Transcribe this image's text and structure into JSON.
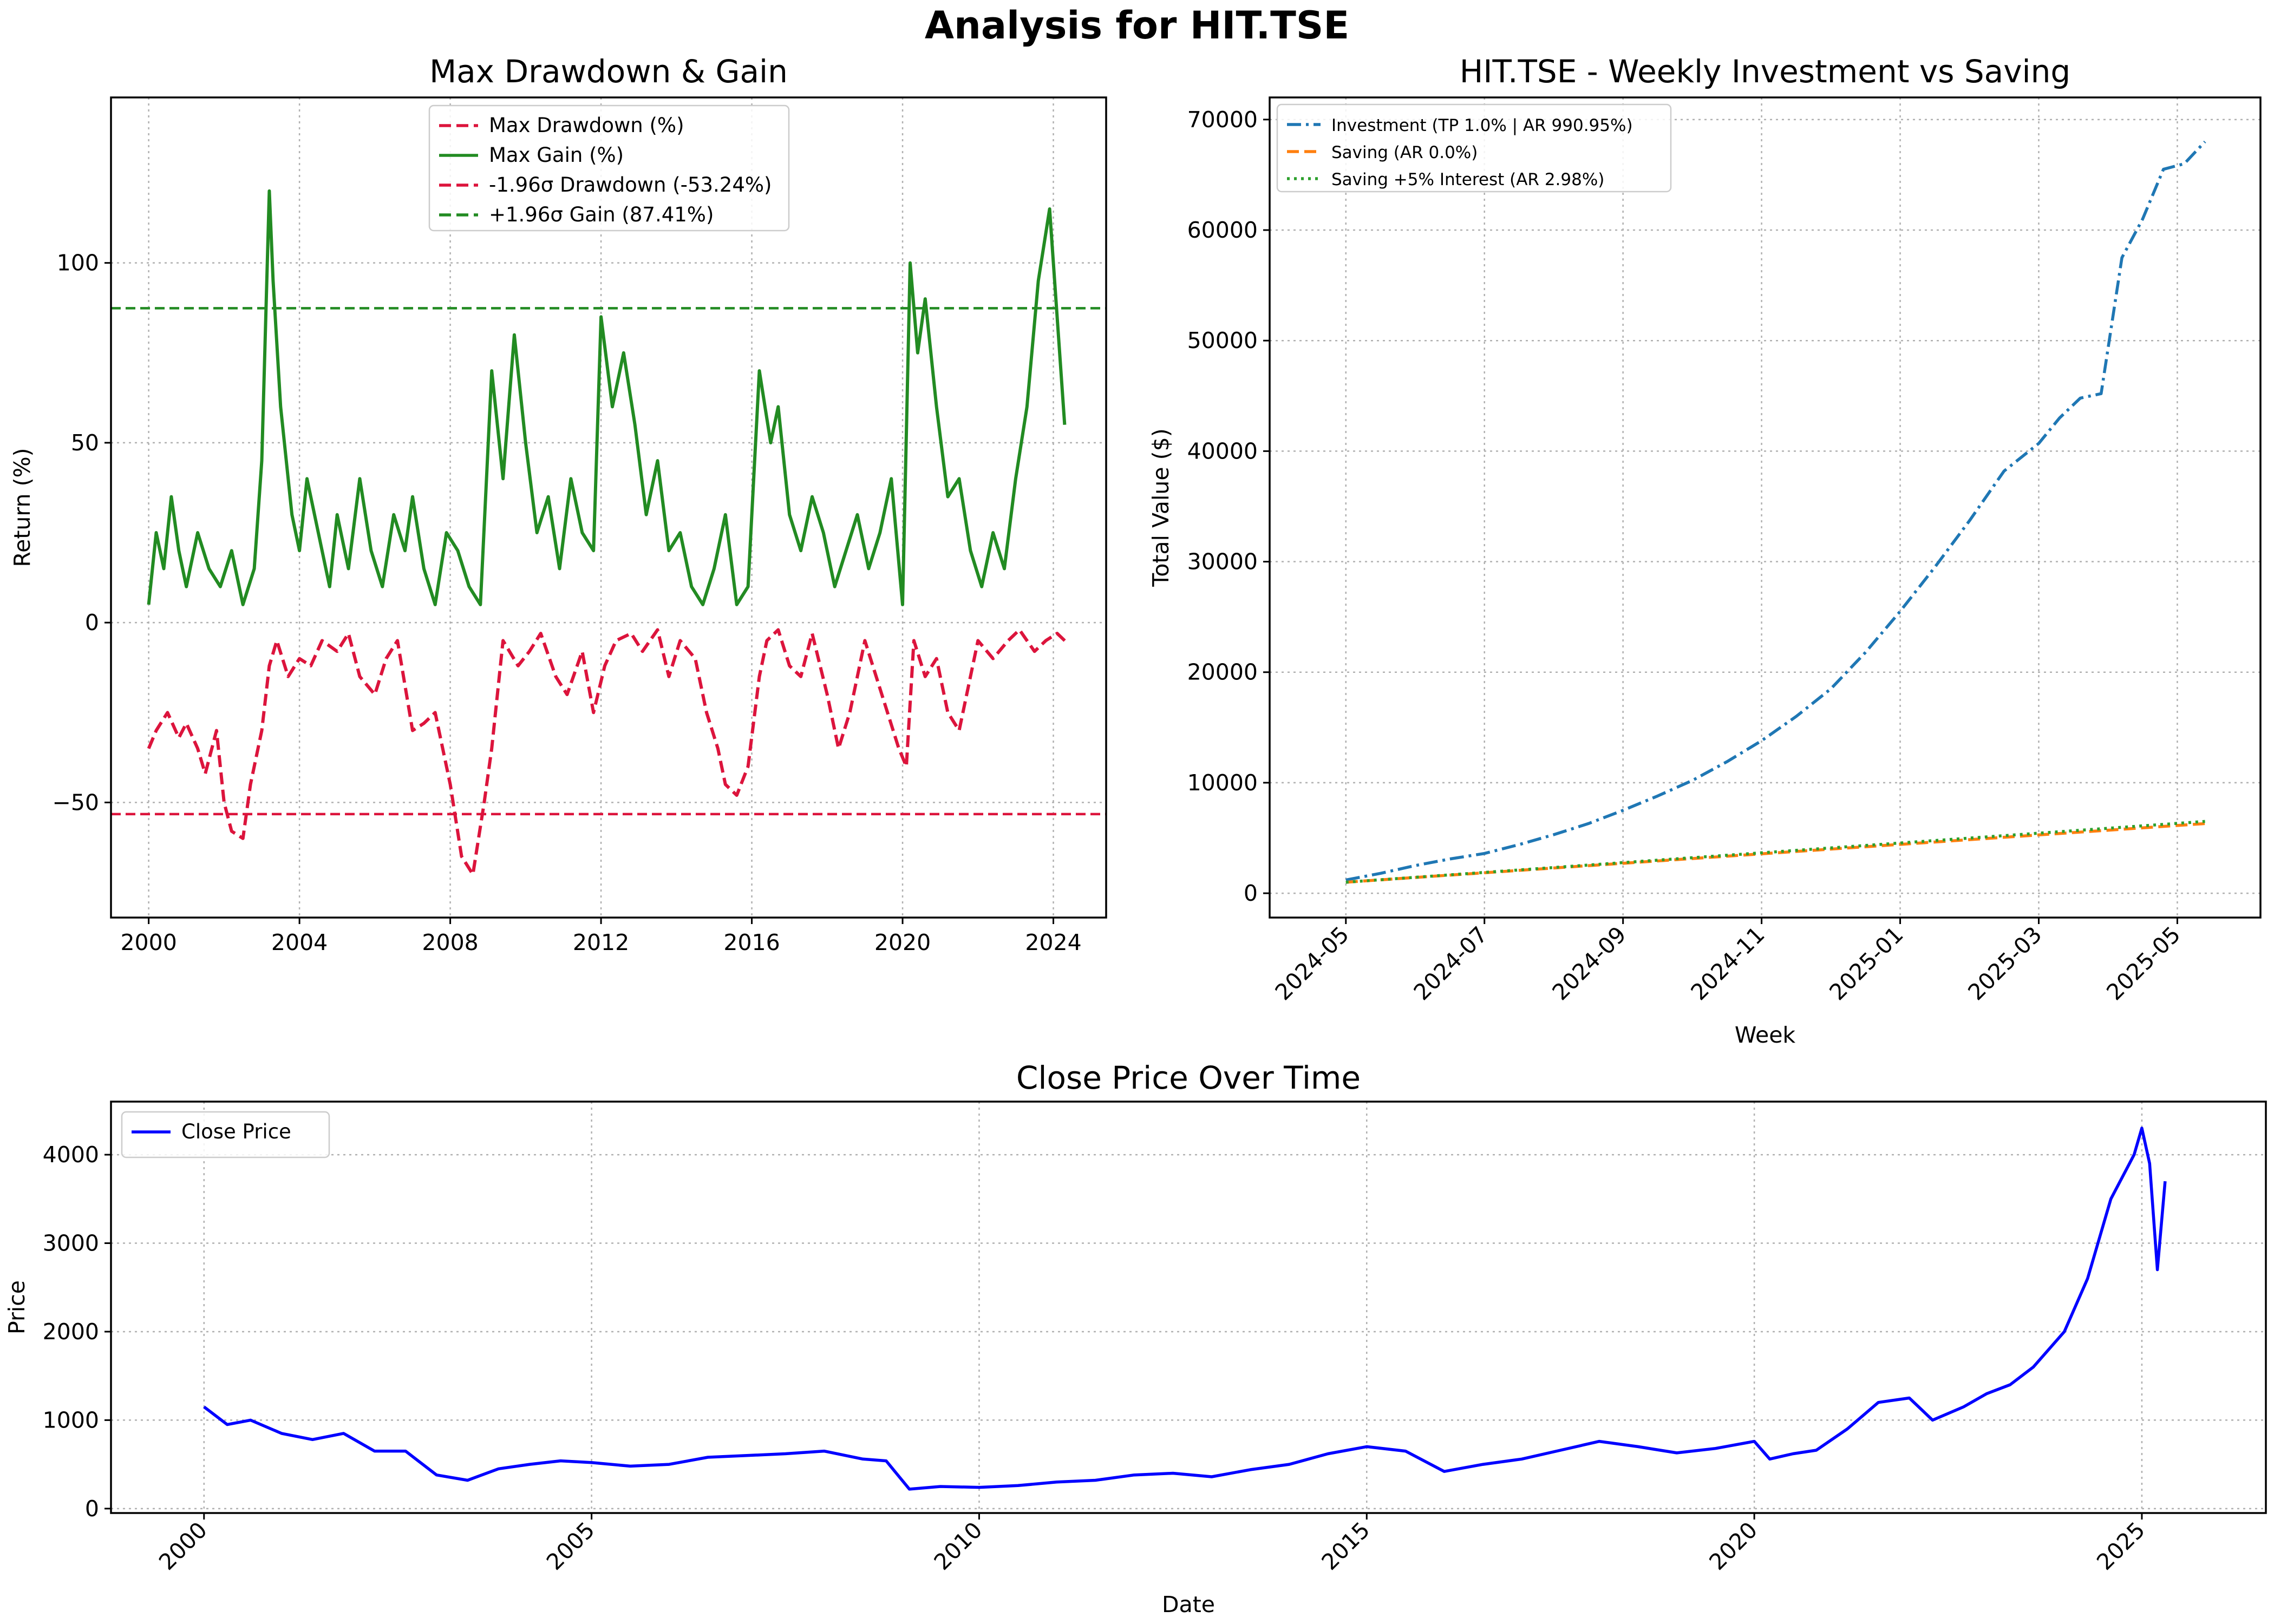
{
  "figure": {
    "title": "Analysis for HIT.TSE"
  },
  "chart_data": [
    {
      "id": "drawdown",
      "type": "line",
      "title": "Max Drawdown & Gain",
      "xlabel": "",
      "ylabel": "Return (%)",
      "xlim": [
        1999.0,
        2025.4
      ],
      "ylim": [
        -82,
        146
      ],
      "xticks": [
        2000,
        2004,
        2008,
        2012,
        2016,
        2020,
        2024
      ],
      "xtick_labels": [
        "2000",
        "2004",
        "2008",
        "2012",
        "2016",
        "2020",
        "2024"
      ],
      "yticks": [
        -50,
        0,
        50,
        100
      ],
      "ytick_labels": [
        "−50",
        "0",
        "50",
        "100"
      ],
      "grid": true,
      "legend_position": "upper center",
      "series": [
        {
          "name": "Max Drawdown (%)",
          "color": "#dc143c",
          "style": "dashed",
          "x": [
            2000.0,
            2000.2,
            2000.5,
            2000.8,
            2001.0,
            2001.3,
            2001.5,
            2001.8,
            2002.0,
            2002.2,
            2002.5,
            2002.7,
            2003.0,
            2003.2,
            2003.4,
            2003.7,
            2004.0,
            2004.3,
            2004.6,
            2005.0,
            2005.3,
            2005.6,
            2006.0,
            2006.3,
            2006.6,
            2007.0,
            2007.3,
            2007.6,
            2008.0,
            2008.3,
            2008.6,
            2008.9,
            2009.1,
            2009.4,
            2009.8,
            2010.1,
            2010.4,
            2010.8,
            2011.1,
            2011.5,
            2011.8,
            2012.1,
            2012.4,
            2012.8,
            2013.1,
            2013.5,
            2013.8,
            2014.1,
            2014.5,
            2014.8,
            2015.1,
            2015.3,
            2015.6,
            2015.9,
            2016.2,
            2016.4,
            2016.7,
            2017.0,
            2017.3,
            2017.6,
            2018.0,
            2018.3,
            2018.6,
            2019.0,
            2019.3,
            2019.6,
            2019.9,
            2020.1,
            2020.3,
            2020.6,
            2020.9,
            2021.2,
            2021.5,
            2021.8,
            2022.0,
            2022.4,
            2022.8,
            2023.1,
            2023.5,
            2023.8,
            2024.1,
            2024.4
          ],
          "y": [
            -35,
            -30,
            -25,
            -32,
            -28,
            -35,
            -42,
            -30,
            -50,
            -58,
            -60,
            -45,
            -30,
            -12,
            -5,
            -15,
            -10,
            -12,
            -5,
            -8,
            -3,
            -15,
            -20,
            -10,
            -5,
            -30,
            -28,
            -25,
            -45,
            -65,
            -70,
            -50,
            -35,
            -5,
            -12,
            -8,
            -3,
            -15,
            -20,
            -8,
            -25,
            -12,
            -5,
            -3,
            -8,
            -2,
            -15,
            -5,
            -10,
            -25,
            -35,
            -45,
            -48,
            -40,
            -15,
            -5,
            -2,
            -12,
            -15,
            -3,
            -20,
            -35,
            -25,
            -5,
            -15,
            -25,
            -35,
            -40,
            -5,
            -15,
            -10,
            -25,
            -30,
            -15,
            -5,
            -10,
            -5,
            -2,
            -8,
            -5,
            -3,
            -6
          ]
        },
        {
          "name": "Max Gain (%)",
          "color": "#228b22",
          "style": "solid",
          "x": [
            2000.0,
            2000.2,
            2000.4,
            2000.6,
            2000.8,
            2001.0,
            2001.3,
            2001.6,
            2001.9,
            2002.2,
            2002.5,
            2002.8,
            2003.0,
            2003.2,
            2003.3,
            2003.5,
            2003.8,
            2004.0,
            2004.2,
            2004.5,
            2004.8,
            2005.0,
            2005.3,
            2005.6,
            2005.9,
            2006.2,
            2006.5,
            2006.8,
            2007.0,
            2007.3,
            2007.6,
            2007.9,
            2008.2,
            2008.5,
            2008.8,
            2009.1,
            2009.4,
            2009.7,
            2010.0,
            2010.3,
            2010.6,
            2010.9,
            2011.2,
            2011.5,
            2011.8,
            2012.0,
            2012.3,
            2012.6,
            2012.9,
            2013.2,
            2013.5,
            2013.8,
            2014.1,
            2014.4,
            2014.7,
            2015.0,
            2015.3,
            2015.6,
            2015.9,
            2016.2,
            2016.5,
            2016.7,
            2017.0,
            2017.3,
            2017.6,
            2017.9,
            2018.2,
            2018.5,
            2018.8,
            2019.1,
            2019.4,
            2019.7,
            2020.0,
            2020.2,
            2020.4,
            2020.6,
            2020.9,
            2021.2,
            2021.5,
            2021.8,
            2022.1,
            2022.4,
            2022.7,
            2023.0,
            2023.3,
            2023.6,
            2023.9,
            2024.1,
            2024.3
          ],
          "y": [
            5,
            25,
            15,
            35,
            20,
            10,
            25,
            15,
            10,
            20,
            5,
            15,
            45,
            120,
            95,
            60,
            30,
            20,
            40,
            25,
            10,
            30,
            15,
            40,
            20,
            10,
            30,
            20,
            35,
            15,
            5,
            25,
            20,
            10,
            5,
            70,
            40,
            80,
            50,
            25,
            35,
            15,
            40,
            25,
            20,
            85,
            60,
            75,
            55,
            30,
            45,
            20,
            25,
            10,
            5,
            15,
            30,
            5,
            10,
            70,
            50,
            60,
            30,
            20,
            35,
            25,
            10,
            20,
            30,
            15,
            25,
            40,
            5,
            100,
            75,
            90,
            60,
            35,
            40,
            20,
            10,
            25,
            15,
            40,
            60,
            95,
            115,
            85,
            55
          ]
        },
        {
          "name": "-1.96σ Drawdown (-53.24%)",
          "color": "#dc143c",
          "style": "dashed",
          "constant": -53.24
        },
        {
          "name": "+1.96σ Gain (87.41%)",
          "color": "#228b22",
          "style": "dashed",
          "constant": 87.41
        }
      ]
    },
    {
      "id": "investment",
      "type": "line",
      "title": "HIT.TSE - Weekly Investment vs Saving",
      "xlabel": "Week",
      "ylabel": "Total Value ($)",
      "xlim": [
        -1.1,
        13.2
      ],
      "ylim": [
        -2200,
        72000
      ],
      "xticks": [
        0,
        2,
        4,
        6,
        8,
        10,
        12
      ],
      "xtick_labels": [
        "2024-05",
        "2024-07",
        "2024-09",
        "2024-11",
        "2025-01",
        "2025-03",
        "2025-05"
      ],
      "yticks": [
        0,
        10000,
        20000,
        30000,
        40000,
        50000,
        60000,
        70000
      ],
      "ytick_labels": [
        "0",
        "10000",
        "20000",
        "30000",
        "40000",
        "50000",
        "60000",
        "70000"
      ],
      "grid": true,
      "legend_position": "upper left",
      "series": [
        {
          "name": "Investment (TP 1.0% | AR 990.95%)",
          "color": "#1f77b4",
          "style": "dashdot",
          "x": [
            0,
            0.5,
            1,
            1.5,
            2,
            2.5,
            3,
            3.5,
            4,
            4.5,
            5,
            5.5,
            6,
            6.5,
            7,
            7.5,
            8,
            8.5,
            9,
            9.5,
            10,
            10.3,
            10.6,
            10.9,
            11.2,
            11.5,
            11.8,
            12.1,
            12.4
          ],
          "y": [
            1200,
            1800,
            2500,
            3100,
            3600,
            4400,
            5300,
            6300,
            7500,
            8800,
            10200,
            11900,
            13800,
            16000,
            18500,
            21800,
            25500,
            29500,
            33700,
            38200,
            40700,
            43000,
            44800,
            45200,
            57500,
            61000,
            65500,
            66000,
            68000
          ]
        },
        {
          "name": "Saving (AR 0.0%)",
          "color": "#ff7f0e",
          "style": "dashed",
          "x": [
            0,
            12.4
          ],
          "y": [
            1000,
            6300
          ]
        },
        {
          "name": "Saving +5% Interest (AR 2.98%)",
          "color": "#2ca02c",
          "style": "dotted",
          "x": [
            0,
            12.4
          ],
          "y": [
            1000,
            6500
          ]
        }
      ]
    },
    {
      "id": "close",
      "type": "line",
      "title": "Close Price Over Time",
      "xlabel": "Date",
      "ylabel": "Price",
      "xlim": [
        1998.8,
        2026.6
      ],
      "ylim": [
        -50,
        4600
      ],
      "xticks": [
        2000,
        2005,
        2010,
        2015,
        2020,
        2025
      ],
      "xtick_labels": [
        "2000",
        "2005",
        "2010",
        "2015",
        "2020",
        "2025"
      ],
      "yticks": [
        0,
        1000,
        2000,
        3000,
        4000
      ],
      "ytick_labels": [
        "0",
        "1000",
        "2000",
        "3000",
        "4000"
      ],
      "grid": true,
      "legend_position": "upper left",
      "series": [
        {
          "name": "Close Price",
          "color": "#0000ff",
          "style": "solid",
          "x": [
            2000.0,
            2000.3,
            2000.6,
            2001.0,
            2001.4,
            2001.8,
            2002.2,
            2002.6,
            2003.0,
            2003.4,
            2003.8,
            2004.2,
            2004.6,
            2005.0,
            2005.5,
            2006.0,
            2006.5,
            2007.0,
            2007.5,
            2008.0,
            2008.5,
            2008.8,
            2009.1,
            2009.5,
            2010.0,
            2010.5,
            2011.0,
            2011.5,
            2012.0,
            2012.5,
            2013.0,
            2013.5,
            2014.0,
            2014.5,
            2015.0,
            2015.5,
            2016.0,
            2016.5,
            2017.0,
            2017.5,
            2018.0,
            2018.5,
            2019.0,
            2019.5,
            2020.0,
            2020.2,
            2020.5,
            2020.8,
            2021.2,
            2021.6,
            2022.0,
            2022.3,
            2022.7,
            2023.0,
            2023.3,
            2023.6,
            2024.0,
            2024.3,
            2024.6,
            2024.9,
            2025.0,
            2025.1,
            2025.2,
            2025.3
          ],
          "y": [
            1150,
            950,
            1000,
            850,
            780,
            850,
            650,
            650,
            380,
            320,
            450,
            500,
            540,
            520,
            480,
            500,
            580,
            600,
            620,
            650,
            560,
            540,
            220,
            250,
            240,
            260,
            300,
            320,
            380,
            400,
            360,
            440,
            500,
            620,
            700,
            650,
            420,
            500,
            560,
            660,
            760,
            700,
            630,
            680,
            760,
            560,
            620,
            660,
            900,
            1200,
            1250,
            1000,
            1150,
            1300,
            1400,
            1600,
            2000,
            2600,
            3500,
            4000,
            4300,
            3900,
            2700,
            3700
          ]
        }
      ]
    }
  ]
}
